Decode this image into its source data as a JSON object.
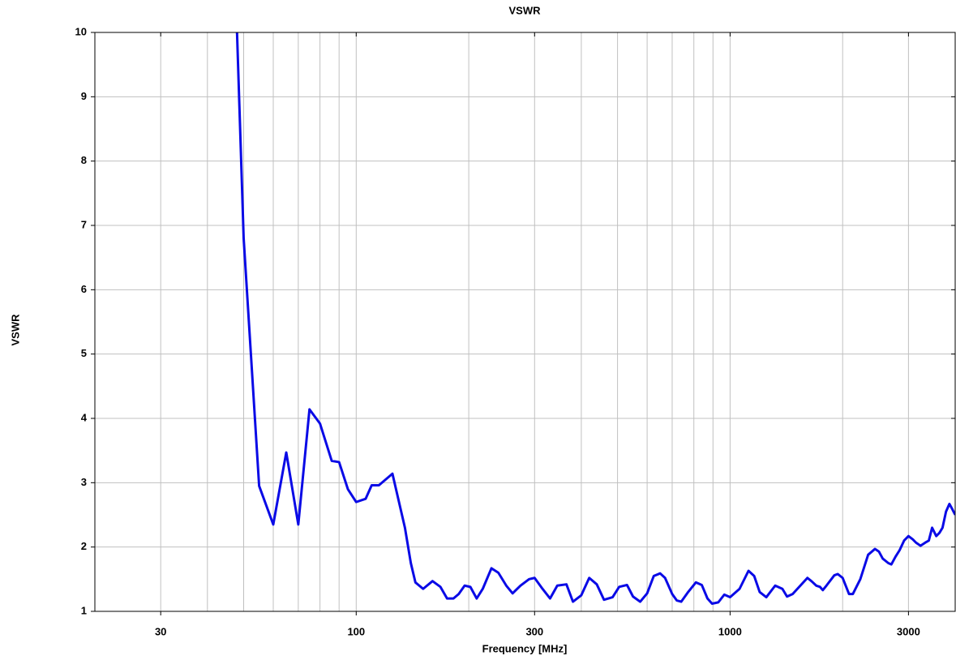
{
  "chart_data": {
    "type": "line",
    "title": "VSWR",
    "xlabel": "Frequency [MHz]",
    "ylabel": "VSWR",
    "xscale": "log",
    "grid": true,
    "xlim": [
      20,
      4000
    ],
    "xticks": [
      30,
      100,
      300,
      1000,
      3000
    ],
    "xgrid": [
      20,
      30,
      40,
      50,
      60,
      70,
      80,
      90,
      100,
      200,
      300,
      400,
      500,
      600,
      700,
      800,
      900,
      1000,
      2000,
      3000,
      4000
    ],
    "ylim": [
      1,
      10
    ],
    "yticks": [
      1,
      2,
      3,
      4,
      5,
      6,
      7,
      8,
      9,
      10
    ],
    "series": [
      {
        "name": "VSWR",
        "color": "#0a0ae6",
        "x": [
          48,
          50,
          55,
          60,
          65,
          70,
          75,
          80,
          86,
          90,
          95,
          100,
          106,
          110,
          115,
          125,
          135,
          140,
          144,
          151,
          160,
          168,
          175,
          182,
          188,
          195,
          202,
          210,
          218,
          230,
          240,
          252,
          262,
          275,
          290,
          300,
          315,
          330,
          345,
          365,
          380,
          400,
          420,
          440,
          460,
          485,
          505,
          530,
          550,
          575,
          600,
          625,
          650,
          670,
          700,
          720,
          740,
          770,
          810,
          840,
          870,
          895,
          930,
          965,
          1000,
          1060,
          1120,
          1160,
          1200,
          1250,
          1320,
          1380,
          1420,
          1470,
          1610,
          1650,
          1700,
          1740,
          1770,
          1810,
          1900,
          1940,
          2000,
          2080,
          2130,
          2230,
          2340,
          2440,
          2500,
          2560,
          2650,
          2700,
          2770,
          2840,
          2920,
          3000,
          3080,
          3140,
          3230,
          3330,
          3400,
          3470,
          3560,
          3630,
          3700,
          3780,
          3860,
          3920,
          4000
        ],
        "values": [
          10,
          6.8,
          2.95,
          2.35,
          3.47,
          2.35,
          4.14,
          3.92,
          3.34,
          3.32,
          2.9,
          2.7,
          2.75,
          2.96,
          2.96,
          3.14,
          2.3,
          1.75,
          1.45,
          1.35,
          1.47,
          1.38,
          1.2,
          1.2,
          1.27,
          1.4,
          1.38,
          1.2,
          1.35,
          1.67,
          1.6,
          1.4,
          1.28,
          1.4,
          1.5,
          1.52,
          1.35,
          1.2,
          1.4,
          1.42,
          1.15,
          1.25,
          1.52,
          1.42,
          1.18,
          1.22,
          1.38,
          1.41,
          1.23,
          1.15,
          1.28,
          1.55,
          1.59,
          1.52,
          1.27,
          1.17,
          1.15,
          1.29,
          1.45,
          1.41,
          1.2,
          1.12,
          1.14,
          1.26,
          1.22,
          1.35,
          1.63,
          1.55,
          1.3,
          1.22,
          1.4,
          1.35,
          1.23,
          1.27,
          1.52,
          1.47,
          1.4,
          1.38,
          1.33,
          1.4,
          1.56,
          1.58,
          1.52,
          1.27,
          1.27,
          1.5,
          1.88,
          1.97,
          1.93,
          1.82,
          1.75,
          1.73,
          1.85,
          1.95,
          2.1,
          2.17,
          2.12,
          2.07,
          2.02,
          2.07,
          2.1,
          2.3,
          2.17,
          2.22,
          2.3,
          2.55,
          2.67,
          2.6,
          2.5
        ]
      }
    ]
  }
}
